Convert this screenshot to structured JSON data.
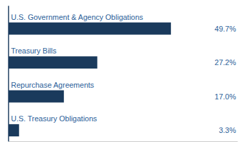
{
  "chart_data": {
    "type": "bar",
    "orientation": "horizontal",
    "categories": [
      "U.S. Treasury Obligations",
      "Repurchase Agreements",
      "Treasury Bills",
      "U.S. Government & Agency Obligations"
    ],
    "values": [
      3.3,
      17.0,
      27.2,
      49.7
    ],
    "value_labels": [
      "3.3%",
      "17.0%",
      "27.2%",
      "49.7%"
    ],
    "data_labels": true,
    "color": "#1a3a5c",
    "xlim": [
      0,
      70
    ],
    "xticks": [],
    "tick_labels": false,
    "grid": false
  }
}
